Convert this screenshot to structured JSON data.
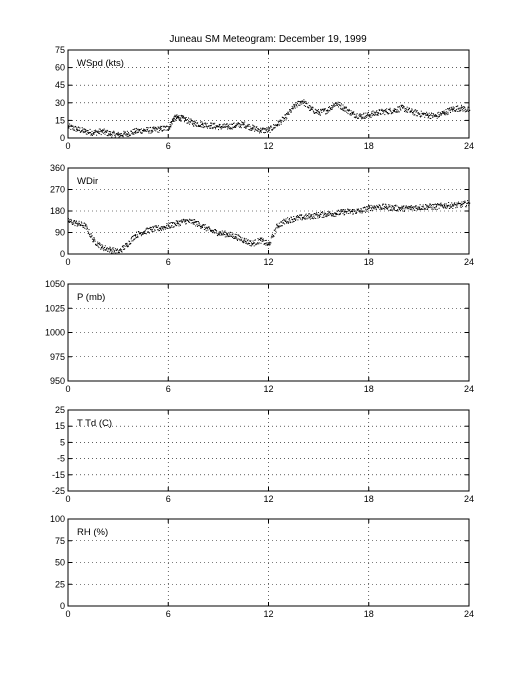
{
  "title": "Juneau SM Meteogram:   December 19, 1999",
  "chart_data": [
    {
      "type": "scatter",
      "label": "WSpd (kts)",
      "xlim": [
        0,
        24
      ],
      "ylim": [
        0,
        75
      ],
      "xticks": [
        0,
        6,
        12,
        18,
        24
      ],
      "yticks": [
        0,
        15,
        30,
        45,
        60,
        75
      ],
      "grid": true,
      "series": [
        {
          "x": [
            0,
            0.5,
            1,
            1.5,
            2,
            2.5,
            3,
            3.5,
            4,
            4.5,
            5,
            5.5,
            6,
            6.3,
            6.6,
            7,
            7.5,
            8,
            8.5,
            9,
            9.5,
            10,
            10.5,
            11,
            11.5,
            12,
            12.5,
            13,
            13.5,
            14,
            14.5,
            15,
            15.5,
            16,
            16.5,
            17,
            17.5,
            18,
            18.5,
            19,
            19.5,
            20,
            20.5,
            21,
            21.5,
            22,
            22.5,
            23,
            23.5,
            24
          ],
          "values": [
            10,
            8,
            6,
            5,
            6,
            4,
            3,
            4,
            6,
            7,
            7,
            8,
            9,
            17,
            18,
            16,
            13,
            12,
            11,
            10,
            10,
            11,
            12,
            9,
            7,
            7,
            12,
            18,
            27,
            32,
            25,
            22,
            24,
            30,
            26,
            21,
            19,
            20,
            22,
            23,
            24,
            26,
            23,
            21,
            20,
            19,
            22,
            25,
            26,
            24
          ]
        }
      ]
    },
    {
      "type": "scatter",
      "label": "WDir",
      "xlim": [
        0,
        24
      ],
      "ylim": [
        0,
        360
      ],
      "xticks": [
        0,
        6,
        12,
        18,
        24
      ],
      "yticks": [
        0,
        90,
        180,
        270,
        360
      ],
      "grid": true,
      "series": [
        {
          "x": [
            0,
            0.5,
            1,
            1.5,
            2,
            2.5,
            3,
            3.5,
            4,
            4.5,
            5,
            5.5,
            6,
            6.5,
            7,
            7.5,
            8,
            8.5,
            9,
            9.5,
            10,
            10.5,
            11,
            11.5,
            12,
            12.5,
            13,
            13.5,
            14,
            14.5,
            15,
            15.5,
            16,
            16.5,
            17,
            17.5,
            18,
            18.5,
            19,
            19.5,
            20,
            20.5,
            21,
            21.5,
            22,
            22.5,
            23,
            23.5,
            24
          ],
          "values": [
            140,
            130,
            120,
            60,
            30,
            20,
            10,
            40,
            80,
            95,
            105,
            110,
            120,
            130,
            140,
            135,
            120,
            100,
            90,
            85,
            75,
            60,
            45,
            60,
            40,
            120,
            140,
            150,
            155,
            160,
            165,
            170,
            172,
            178,
            180,
            182,
            195,
            200,
            198,
            195,
            192,
            195,
            198,
            200,
            200,
            205,
            205,
            208,
            215
          ]
        }
      ]
    },
    {
      "type": "scatter",
      "label": "P (mb)",
      "xlim": [
        0,
        24
      ],
      "ylim": [
        950,
        1050
      ],
      "xticks": [
        0,
        6,
        12,
        18,
        24
      ],
      "yticks": [
        950,
        975,
        1000,
        1025,
        1050
      ],
      "grid": true,
      "series": []
    },
    {
      "type": "scatter",
      "label": "T Td (C)",
      "xlim": [
        0,
        24
      ],
      "ylim": [
        -25,
        25
      ],
      "xticks": [
        0,
        6,
        12,
        18,
        24
      ],
      "yticks": [
        -25,
        -15,
        -5,
        5,
        15,
        25
      ],
      "grid": true,
      "series": []
    },
    {
      "type": "scatter",
      "label": "RH (%)",
      "xlim": [
        0,
        24
      ],
      "ylim": [
        0,
        100
      ],
      "xticks": [
        0,
        6,
        12,
        18,
        24
      ],
      "yticks": [
        0,
        25,
        50,
        75,
        100
      ],
      "grid": true,
      "series": []
    }
  ]
}
